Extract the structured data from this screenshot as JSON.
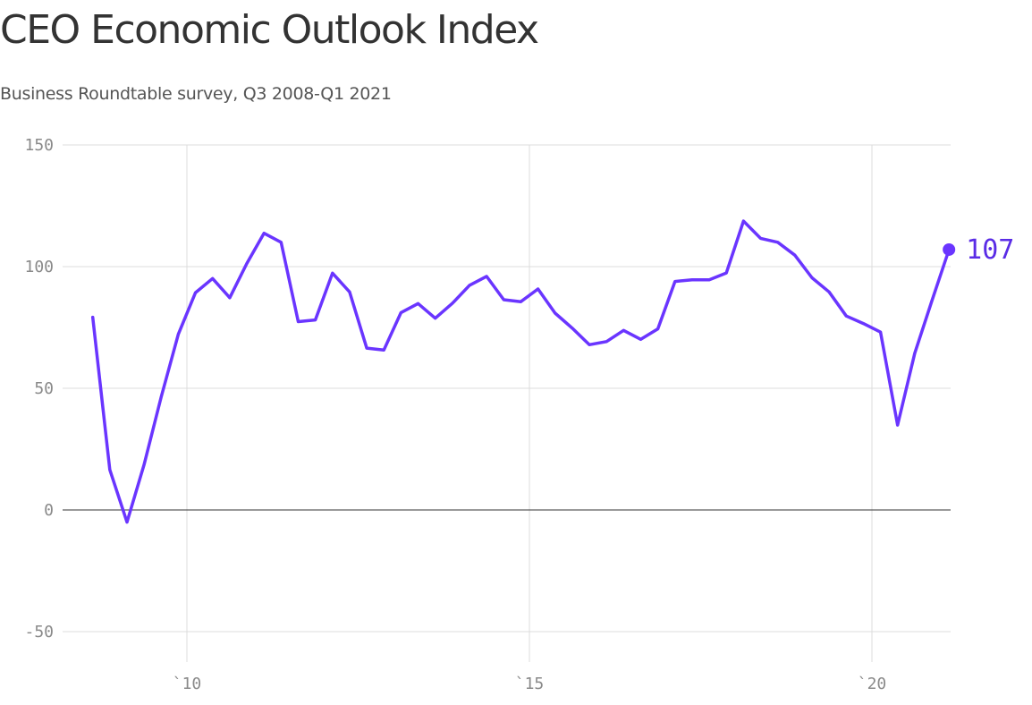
{
  "chart_data": {
    "type": "line",
    "title": "CEO Economic Outlook Index",
    "subtitle": "Business Roundtable survey, Q3 2008-Q1 2021",
    "xlabel": "",
    "ylabel": "",
    "ylim": [
      -50,
      150
    ],
    "y_ticks": [
      150,
      100,
      50,
      0,
      -50
    ],
    "y_tick_labels": [
      "150",
      "100",
      "50",
      "0",
      "-50"
    ],
    "x_ticks": [
      2010,
      2015,
      2020
    ],
    "x_tick_labels": [
      "`10",
      "`15",
      "`20"
    ],
    "grid": true,
    "color": "#6a35ff",
    "end_label": "107",
    "series": [
      {
        "x": [
          "Q3 2008",
          "Q4 2008",
          "Q1 2009",
          "Q2 2009",
          "Q3 2009",
          "Q4 2009",
          "Q1 2010",
          "Q2 2010",
          "Q3 2010",
          "Q4 2010",
          "Q1 2011",
          "Q2 2011",
          "Q3 2011",
          "Q4 2011",
          "Q1 2012",
          "Q2 2012",
          "Q3 2012",
          "Q4 2012",
          "Q1 2013",
          "Q2 2013",
          "Q3 2013",
          "Q4 2013",
          "Q1 2014",
          "Q2 2014",
          "Q3 2014",
          "Q4 2014",
          "Q1 2015",
          "Q2 2015",
          "Q3 2015",
          "Q4 2015",
          "Q1 2016",
          "Q2 2016",
          "Q3 2016",
          "Q4 2016",
          "Q1 2017",
          "Q2 2017",
          "Q3 2017",
          "Q4 2017",
          "Q1 2018",
          "Q2 2018",
          "Q3 2018",
          "Q4 2018",
          "Q1 2019",
          "Q2 2019",
          "Q3 2019",
          "Q4 2019",
          "Q1 2020",
          "Q2 2020",
          "Q3 2020",
          "Q4 2020",
          "Q1 2021"
        ],
        "values": [
          79.2,
          16.5,
          -5.0,
          18.6,
          46.5,
          72.2,
          89.3,
          95.1,
          87.2,
          101.3,
          113.7,
          110.0,
          77.4,
          78.1,
          97.3,
          89.6,
          66.5,
          65.7,
          81.1,
          84.8,
          78.8,
          84.9,
          92.3,
          96.0,
          86.4,
          85.6,
          90.8,
          80.9,
          74.7,
          67.9,
          69.2,
          73.8,
          70.1,
          74.4,
          93.9,
          94.6,
          94.6,
          97.4,
          118.7,
          111.6,
          110.0,
          104.7,
          95.4,
          89.6,
          79.7,
          76.6,
          73.1,
          34.9,
          64.4,
          85.9,
          107.0
        ]
      }
    ]
  }
}
